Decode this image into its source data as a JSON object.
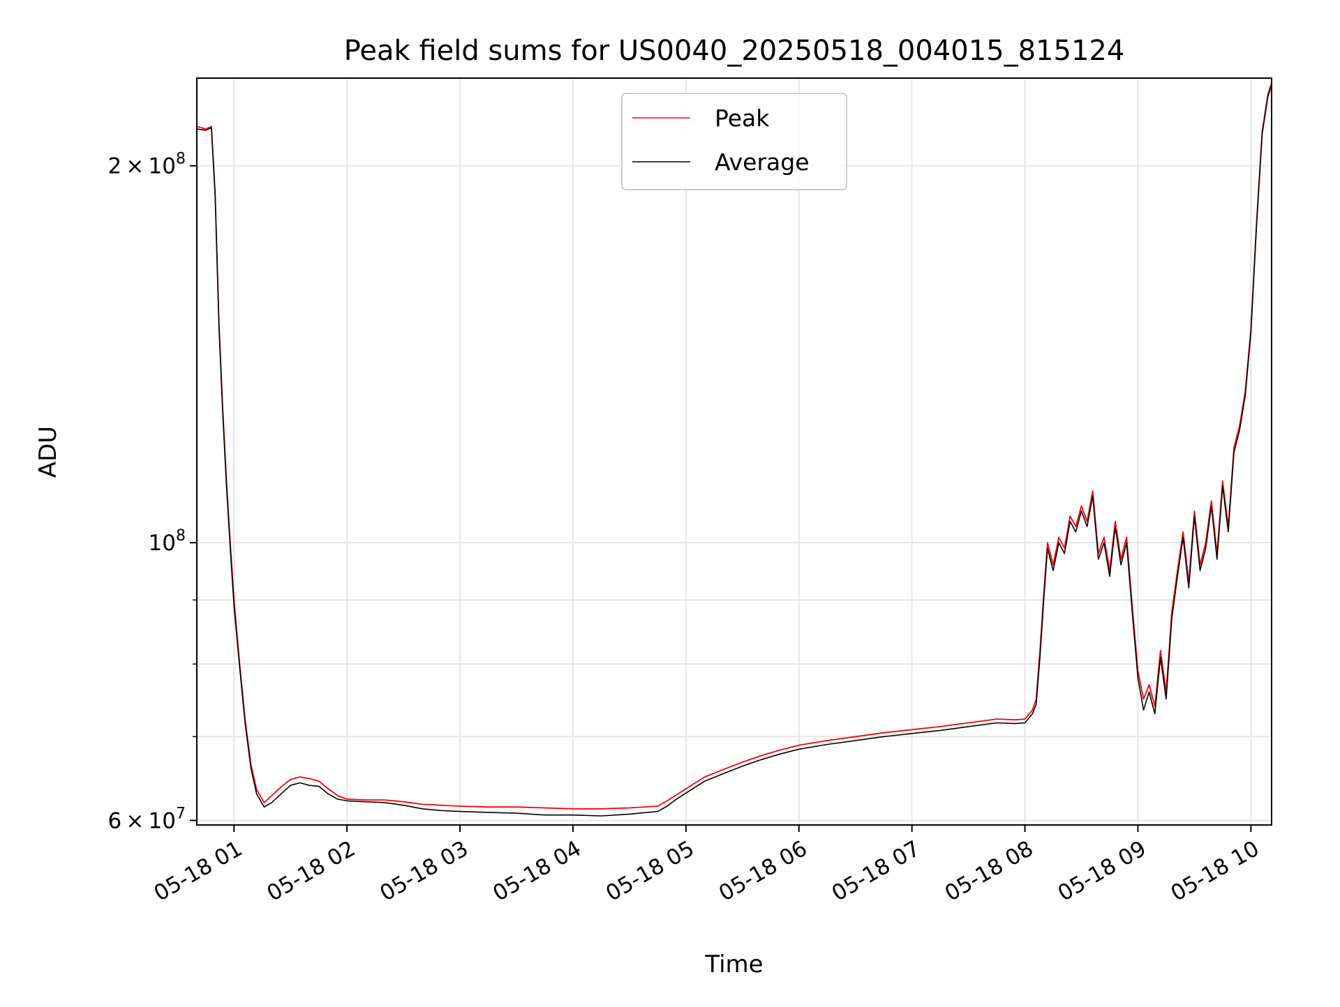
{
  "chart_data": {
    "type": "line",
    "title": "Peak field sums for US0040_20250518_004015_815124",
    "xlabel": "Time",
    "ylabel": "ADU",
    "x_axis_type": "datetime",
    "xlim": [
      "2025-05-18T00:40:15",
      "2025-05-18T10:11:00"
    ],
    "ylim": [
      59500000,
      235000000
    ],
    "yscale": "log",
    "grid": true,
    "legend": "top-center",
    "x_ticks": [
      {
        "value": "2025-05-18T01:00:00",
        "label": "05-18 01"
      },
      {
        "value": "2025-05-18T02:00:00",
        "label": "05-18 02"
      },
      {
        "value": "2025-05-18T03:00:00",
        "label": "05-18 03"
      },
      {
        "value": "2025-05-18T04:00:00",
        "label": "05-18 04"
      },
      {
        "value": "2025-05-18T05:00:00",
        "label": "05-18 05"
      },
      {
        "value": "2025-05-18T06:00:00",
        "label": "05-18 06"
      },
      {
        "value": "2025-05-18T07:00:00",
        "label": "05-18 07"
      },
      {
        "value": "2025-05-18T08:00:00",
        "label": "05-18 08"
      },
      {
        "value": "2025-05-18T09:00:00",
        "label": "05-18 09"
      },
      {
        "value": "2025-05-18T10:00:00",
        "label": "05-18 10"
      }
    ],
    "y_ticks": [
      {
        "value": 60000000,
        "mantissa": "6",
        "exponent": "7"
      },
      {
        "value": 100000000,
        "mantissa": "",
        "exponent": "8"
      },
      {
        "value": 200000000,
        "mantissa": "2",
        "exponent": "8"
      }
    ],
    "y_minor_ticks": [
      70000000,
      80000000,
      90000000
    ],
    "base": "10",
    "times_sign": "×",
    "series": [
      {
        "name": "Peak",
        "color": "#ff0000",
        "x": [
          "2025-05-18T00:40:15",
          "2025-05-18T00:45:00",
          "2025-05-18T00:48:00",
          "2025-05-18T00:50:00",
          "2025-05-18T00:52:00",
          "2025-05-18T00:54:00",
          "2025-05-18T00:56:00",
          "2025-05-18T00:58:00",
          "2025-05-18T01:00:00",
          "2025-05-18T01:03:00",
          "2025-05-18T01:06:00",
          "2025-05-18T01:09:00",
          "2025-05-18T01:12:00",
          "2025-05-18T01:16:00",
          "2025-05-18T01:20:00",
          "2025-05-18T01:25:00",
          "2025-05-18T01:30:00",
          "2025-05-18T01:35:00",
          "2025-05-18T01:40:00",
          "2025-05-18T01:45:00",
          "2025-05-18T01:50:00",
          "2025-05-18T01:55:00",
          "2025-05-18T02:00:00",
          "2025-05-18T02:10:00",
          "2025-05-18T02:20:00",
          "2025-05-18T02:30:00",
          "2025-05-18T02:40:00",
          "2025-05-18T02:50:00",
          "2025-05-18T03:00:00",
          "2025-05-18T03:15:00",
          "2025-05-18T03:30:00",
          "2025-05-18T03:45:00",
          "2025-05-18T04:00:00",
          "2025-05-18T04:15:00",
          "2025-05-18T04:30:00",
          "2025-05-18T04:45:00",
          "2025-05-18T04:50:00",
          "2025-05-18T04:55:00",
          "2025-05-18T05:00:00",
          "2025-05-18T05:10:00",
          "2025-05-18T05:20:00",
          "2025-05-18T05:30:00",
          "2025-05-18T05:40:00",
          "2025-05-18T05:50:00",
          "2025-05-18T06:00:00",
          "2025-05-18T06:15:00",
          "2025-05-18T06:30:00",
          "2025-05-18T06:45:00",
          "2025-05-18T07:00:00",
          "2025-05-18T07:15:00",
          "2025-05-18T07:30:00",
          "2025-05-18T07:45:00",
          "2025-05-18T07:55:00",
          "2025-05-18T08:00:00",
          "2025-05-18T08:04:00",
          "2025-05-18T08:06:00",
          "2025-05-18T08:08:00",
          "2025-05-18T08:10:00",
          "2025-05-18T08:12:00",
          "2025-05-18T08:15:00",
          "2025-05-18T08:18:00",
          "2025-05-18T08:21:00",
          "2025-05-18T08:24:00",
          "2025-05-18T08:27:00",
          "2025-05-18T08:30:00",
          "2025-05-18T08:33:00",
          "2025-05-18T08:36:00",
          "2025-05-18T08:39:00",
          "2025-05-18T08:42:00",
          "2025-05-18T08:45:00",
          "2025-05-18T08:48:00",
          "2025-05-18T08:51:00",
          "2025-05-18T08:54:00",
          "2025-05-18T08:57:00",
          "2025-05-18T09:00:00",
          "2025-05-18T09:03:00",
          "2025-05-18T09:06:00",
          "2025-05-18T09:09:00",
          "2025-05-18T09:12:00",
          "2025-05-18T09:15:00",
          "2025-05-18T09:18:00",
          "2025-05-18T09:21:00",
          "2025-05-18T09:24:00",
          "2025-05-18T09:27:00",
          "2025-05-18T09:30:00",
          "2025-05-18T09:33:00",
          "2025-05-18T09:36:00",
          "2025-05-18T09:39:00",
          "2025-05-18T09:42:00",
          "2025-05-18T09:45:00",
          "2025-05-18T09:48:00",
          "2025-05-18T09:51:00",
          "2025-05-18T09:54:00",
          "2025-05-18T09:57:00",
          "2025-05-18T10:00:00",
          "2025-05-18T10:03:00",
          "2025-05-18T10:06:00",
          "2025-05-18T10:09:00",
          "2025-05-18T10:11:00"
        ],
        "y": [
          215000000,
          214000000,
          215000000,
          190000000,
          150000000,
          128000000,
          112000000,
          100000000,
          90000000,
          80000000,
          72000000,
          66500000,
          63500000,
          62000000,
          62800000,
          63800000,
          64700000,
          65000000,
          64800000,
          64500000,
          63600000,
          62800000,
          62400000,
          62300000,
          62300000,
          62100000,
          61800000,
          61700000,
          61600000,
          61500000,
          61500000,
          61400000,
          61300000,
          61300000,
          61400000,
          61600000,
          62200000,
          62900000,
          63600000,
          65000000,
          65900000,
          66800000,
          67600000,
          68300000,
          68900000,
          69500000,
          70000000,
          70500000,
          70900000,
          71300000,
          71800000,
          72300000,
          72200000,
          72300000,
          73500000,
          75000000,
          82000000,
          91000000,
          100000000,
          96000000,
          101000000,
          99000000,
          105000000,
          103000000,
          107000000,
          104000000,
          110000000,
          98000000,
          101000000,
          95000000,
          104000000,
          97000000,
          101000000,
          89000000,
          79000000,
          75000000,
          77000000,
          74000000,
          82000000,
          76000000,
          88000000,
          95000000,
          102000000,
          93000000,
          106000000,
          96000000,
          100000000,
          108000000,
          98000000,
          112000000,
          103000000,
          119000000,
          124000000,
          132000000,
          148000000,
          180000000,
          213000000,
          228000000,
          233000000
        ]
      },
      {
        "name": "Average",
        "color": "#000000",
        "x": [
          "2025-05-18T00:40:15",
          "2025-05-18T00:45:00",
          "2025-05-18T00:48:00",
          "2025-05-18T00:50:00",
          "2025-05-18T00:52:00",
          "2025-05-18T00:54:00",
          "2025-05-18T00:56:00",
          "2025-05-18T00:58:00",
          "2025-05-18T01:00:00",
          "2025-05-18T01:03:00",
          "2025-05-18T01:06:00",
          "2025-05-18T01:09:00",
          "2025-05-18T01:12:00",
          "2025-05-18T01:16:00",
          "2025-05-18T01:20:00",
          "2025-05-18T01:25:00",
          "2025-05-18T01:30:00",
          "2025-05-18T01:35:00",
          "2025-05-18T01:40:00",
          "2025-05-18T01:45:00",
          "2025-05-18T01:50:00",
          "2025-05-18T01:55:00",
          "2025-05-18T02:00:00",
          "2025-05-18T02:10:00",
          "2025-05-18T02:20:00",
          "2025-05-18T02:30:00",
          "2025-05-18T02:40:00",
          "2025-05-18T02:50:00",
          "2025-05-18T03:00:00",
          "2025-05-18T03:15:00",
          "2025-05-18T03:30:00",
          "2025-05-18T03:45:00",
          "2025-05-18T04:00:00",
          "2025-05-18T04:15:00",
          "2025-05-18T04:30:00",
          "2025-05-18T04:45:00",
          "2025-05-18T04:50:00",
          "2025-05-18T04:55:00",
          "2025-05-18T05:00:00",
          "2025-05-18T05:10:00",
          "2025-05-18T05:20:00",
          "2025-05-18T05:30:00",
          "2025-05-18T05:40:00",
          "2025-05-18T05:50:00",
          "2025-05-18T06:00:00",
          "2025-05-18T06:15:00",
          "2025-05-18T06:30:00",
          "2025-05-18T06:45:00",
          "2025-05-18T07:00:00",
          "2025-05-18T07:15:00",
          "2025-05-18T07:30:00",
          "2025-05-18T07:45:00",
          "2025-05-18T07:55:00",
          "2025-05-18T08:00:00",
          "2025-05-18T08:04:00",
          "2025-05-18T08:06:00",
          "2025-05-18T08:08:00",
          "2025-05-18T08:10:00",
          "2025-05-18T08:12:00",
          "2025-05-18T08:15:00",
          "2025-05-18T08:18:00",
          "2025-05-18T08:21:00",
          "2025-05-18T08:24:00",
          "2025-05-18T08:27:00",
          "2025-05-18T08:30:00",
          "2025-05-18T08:33:00",
          "2025-05-18T08:36:00",
          "2025-05-18T08:39:00",
          "2025-05-18T08:42:00",
          "2025-05-18T08:45:00",
          "2025-05-18T08:48:00",
          "2025-05-18T08:51:00",
          "2025-05-18T08:54:00",
          "2025-05-18T08:57:00",
          "2025-05-18T09:00:00",
          "2025-05-18T09:03:00",
          "2025-05-18T09:06:00",
          "2025-05-18T09:09:00",
          "2025-05-18T09:12:00",
          "2025-05-18T09:15:00",
          "2025-05-18T09:18:00",
          "2025-05-18T09:21:00",
          "2025-05-18T09:24:00",
          "2025-05-18T09:27:00",
          "2025-05-18T09:30:00",
          "2025-05-18T09:33:00",
          "2025-05-18T09:36:00",
          "2025-05-18T09:39:00",
          "2025-05-18T09:42:00",
          "2025-05-18T09:45:00",
          "2025-05-18T09:48:00",
          "2025-05-18T09:51:00",
          "2025-05-18T09:54:00",
          "2025-05-18T09:57:00",
          "2025-05-18T10:00:00",
          "2025-05-18T10:03:00",
          "2025-05-18T10:06:00",
          "2025-05-18T10:09:00",
          "2025-05-18T10:11:00"
        ],
        "y": [
          214000000,
          213500000,
          214500000,
          189000000,
          149000000,
          127000000,
          111000000,
          99000000,
          89000000,
          79500000,
          71500000,
          66000000,
          63000000,
          61500000,
          62000000,
          63000000,
          64000000,
          64300000,
          64000000,
          63900000,
          63000000,
          62400000,
          62200000,
          62100000,
          62000000,
          61700000,
          61300000,
          61100000,
          61000000,
          60900000,
          60800000,
          60600000,
          60600000,
          60500000,
          60700000,
          61000000,
          61600000,
          62400000,
          63100000,
          64500000,
          65400000,
          66300000,
          67100000,
          67800000,
          68400000,
          69000000,
          69500000,
          70000000,
          70400000,
          70800000,
          71300000,
          71800000,
          71700000,
          71800000,
          73000000,
          74300000,
          81000000,
          90000000,
          99000000,
          95000000,
          100000000,
          98000000,
          104000000,
          102000000,
          106000000,
          103000000,
          109000000,
          97000000,
          100000000,
          94000000,
          103000000,
          96000000,
          100000000,
          88000000,
          78000000,
          73500000,
          76000000,
          73000000,
          81000000,
          75000000,
          87000000,
          94000000,
          101000000,
          92000000,
          105000000,
          95000000,
          99000000,
          107000000,
          97000000,
          111000000,
          102000000,
          118000000,
          123000000,
          131000000,
          147000000,
          179000000,
          212000000,
          227000000,
          232000000
        ]
      }
    ]
  }
}
